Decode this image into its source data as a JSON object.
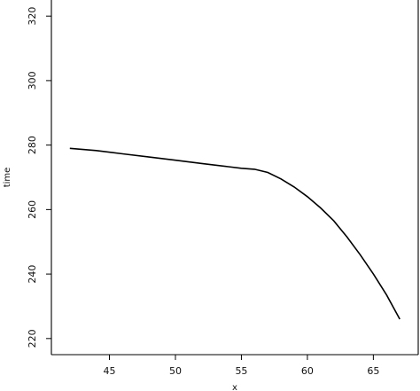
{
  "chart_data": {
    "type": "line",
    "xlabel": "x",
    "ylabel": "time",
    "xlim": [
      40.6,
      68.4
    ],
    "ylim": [
      215,
      325
    ],
    "x_ticks": [
      45,
      50,
      55,
      60,
      65
    ],
    "y_ticks": [
      220,
      240,
      260,
      280,
      300,
      320
    ],
    "grid": false,
    "series": [
      {
        "x": [
          42,
          44,
          46,
          48,
          50,
          52,
          54,
          55,
          56,
          57,
          58,
          59,
          60,
          61,
          62,
          63,
          64,
          65,
          66,
          67
        ],
        "y": [
          279,
          278.3,
          277.3,
          276.3,
          275.3,
          274.3,
          273.3,
          272.8,
          272.5,
          271.5,
          269.5,
          267,
          264,
          260.5,
          256.5,
          251.5,
          246,
          240,
          233.5,
          226
        ]
      }
    ]
  }
}
